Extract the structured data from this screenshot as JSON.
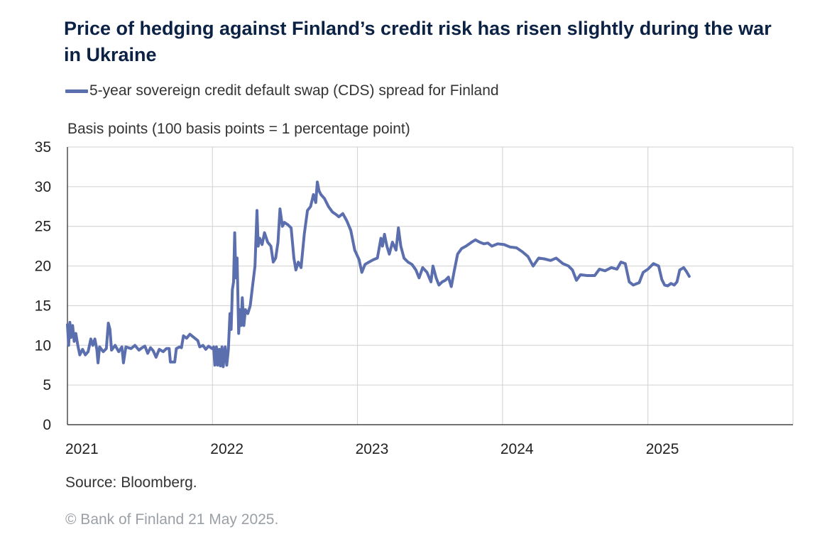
{
  "title": "Price of hedging against Finland’s credit risk has risen slightly during the war in Ukraine",
  "source": "Source: Bloomberg.",
  "copyright": "© Bank of Finland 21 May 2025.",
  "chart_data": {
    "type": "line",
    "ylabel": "Basis points (100 basis points = 1 percentage point)",
    "ylim": [
      0,
      35
    ],
    "yticks": [
      "0",
      "5",
      "10",
      "15",
      "20",
      "25",
      "30",
      "35"
    ],
    "xlim": [
      "2021-01-01",
      "2026-01-01"
    ],
    "xticks": [
      "2021",
      "2022",
      "2023",
      "2024",
      "2025"
    ],
    "grid": true,
    "legend_position": "top-left",
    "colors": {
      "series": "#5b6eae",
      "grid": "#d0d0d0",
      "axis": "#222222"
    },
    "series": [
      {
        "name": "5-year sovereign credit default swap (CDS) spread for Finland",
        "points": [
          [
            "2021-01-01",
            12.6
          ],
          [
            "2021-01-04",
            10.0
          ],
          [
            "2021-01-07",
            12.9
          ],
          [
            "2021-01-10",
            11.0
          ],
          [
            "2021-01-14",
            12.5
          ],
          [
            "2021-01-18",
            10.5
          ],
          [
            "2021-01-22",
            11.5
          ],
          [
            "2021-01-27",
            10.0
          ],
          [
            "2021-02-01",
            8.8
          ],
          [
            "2021-02-08",
            9.5
          ],
          [
            "2021-02-15",
            8.8
          ],
          [
            "2021-02-22",
            9.2
          ],
          [
            "2021-03-01",
            10.8
          ],
          [
            "2021-03-06",
            10.0
          ],
          [
            "2021-03-11",
            10.8
          ],
          [
            "2021-03-16",
            9.5
          ],
          [
            "2021-03-19",
            7.8
          ],
          [
            "2021-03-23",
            9.8
          ],
          [
            "2021-04-01",
            9.2
          ],
          [
            "2021-04-09",
            9.6
          ],
          [
            "2021-04-14",
            12.8
          ],
          [
            "2021-04-18",
            12.0
          ],
          [
            "2021-04-22",
            9.4
          ],
          [
            "2021-05-01",
            10.0
          ],
          [
            "2021-05-10",
            9.2
          ],
          [
            "2021-05-18",
            9.8
          ],
          [
            "2021-05-22",
            7.8
          ],
          [
            "2021-05-28",
            9.8
          ],
          [
            "2021-06-10",
            9.6
          ],
          [
            "2021-06-20",
            10.0
          ],
          [
            "2021-06-30",
            9.4
          ],
          [
            "2021-07-08",
            9.7
          ],
          [
            "2021-07-15",
            9.9
          ],
          [
            "2021-07-22",
            9.0
          ],
          [
            "2021-07-29",
            9.7
          ],
          [
            "2021-08-05",
            9.3
          ],
          [
            "2021-08-12",
            8.5
          ],
          [
            "2021-08-20",
            9.5
          ],
          [
            "2021-08-30",
            9.2
          ],
          [
            "2021-09-07",
            9.6
          ],
          [
            "2021-09-14",
            9.6
          ],
          [
            "2021-09-17",
            7.9
          ],
          [
            "2021-09-28",
            7.9
          ],
          [
            "2021-10-02",
            9.6
          ],
          [
            "2021-10-10",
            9.8
          ],
          [
            "2021-10-15",
            9.7
          ],
          [
            "2021-10-20",
            11.2
          ],
          [
            "2021-10-28",
            10.9
          ],
          [
            "2021-11-05",
            11.4
          ],
          [
            "2021-11-15",
            11.0
          ],
          [
            "2021-11-25",
            10.6
          ],
          [
            "2021-11-30",
            9.8
          ],
          [
            "2021-12-08",
            10.0
          ],
          [
            "2021-12-15",
            9.5
          ],
          [
            "2021-12-22",
            9.9
          ],
          [
            "2021-12-31",
            9.6
          ],
          [
            "2022-01-04",
            9.8
          ],
          [
            "2022-01-07",
            7.5
          ],
          [
            "2022-01-11",
            9.8
          ],
          [
            "2022-01-14",
            7.5
          ],
          [
            "2022-01-18",
            9.5
          ],
          [
            "2022-01-21",
            7.4
          ],
          [
            "2022-01-25",
            9.8
          ],
          [
            "2022-01-28",
            7.3
          ],
          [
            "2022-02-02",
            9.8
          ],
          [
            "2022-02-06",
            7.5
          ],
          [
            "2022-02-10",
            9.5
          ],
          [
            "2022-02-14",
            14.0
          ],
          [
            "2022-02-17",
            12.0
          ],
          [
            "2022-02-20",
            17.0
          ],
          [
            "2022-02-23",
            18.0
          ],
          [
            "2022-02-26",
            24.2
          ],
          [
            "2022-03-01",
            18.5
          ],
          [
            "2022-03-04",
            21.0
          ],
          [
            "2022-03-08",
            11.5
          ],
          [
            "2022-03-11",
            14.5
          ],
          [
            "2022-03-14",
            12.5
          ],
          [
            "2022-03-17",
            16.0
          ],
          [
            "2022-03-21",
            12.5
          ],
          [
            "2022-03-25",
            14.5
          ],
          [
            "2022-03-31",
            14.0
          ],
          [
            "2022-04-06",
            15.0
          ],
          [
            "2022-04-12",
            17.5
          ],
          [
            "2022-04-18",
            20.0
          ],
          [
            "2022-04-23",
            27.0
          ],
          [
            "2022-04-26",
            22.5
          ],
          [
            "2022-04-30",
            23.5
          ],
          [
            "2022-05-06",
            22.7
          ],
          [
            "2022-05-12",
            24.2
          ],
          [
            "2022-05-20",
            23.0
          ],
          [
            "2022-05-28",
            22.5
          ],
          [
            "2022-06-03",
            20.5
          ],
          [
            "2022-06-09",
            21.0
          ],
          [
            "2022-06-15",
            23.0
          ],
          [
            "2022-06-20",
            27.2
          ],
          [
            "2022-06-26",
            25.0
          ],
          [
            "2022-07-01",
            25.5
          ],
          [
            "2022-07-10",
            25.2
          ],
          [
            "2022-07-18",
            24.8
          ],
          [
            "2022-07-25",
            21.0
          ],
          [
            "2022-07-30",
            19.5
          ],
          [
            "2022-08-05",
            20.5
          ],
          [
            "2022-08-12",
            19.8
          ],
          [
            "2022-08-20",
            24.0
          ],
          [
            "2022-08-28",
            27.0
          ],
          [
            "2022-09-05",
            27.5
          ],
          [
            "2022-09-12",
            29.0
          ],
          [
            "2022-09-18",
            28.0
          ],
          [
            "2022-09-22",
            30.6
          ],
          [
            "2022-09-26",
            29.5
          ],
          [
            "2022-10-01",
            29.0
          ],
          [
            "2022-10-10",
            28.5
          ],
          [
            "2022-10-20",
            27.5
          ],
          [
            "2022-10-30",
            26.8
          ],
          [
            "2022-11-08",
            26.5
          ],
          [
            "2022-11-15",
            26.2
          ],
          [
            "2022-11-25",
            26.6
          ],
          [
            "2022-12-05",
            25.7
          ],
          [
            "2022-12-15",
            24.5
          ],
          [
            "2022-12-25",
            22.0
          ],
          [
            "2023-01-05",
            20.8
          ],
          [
            "2023-01-12",
            19.2
          ],
          [
            "2023-01-20",
            20.2
          ],
          [
            "2023-01-30",
            20.5
          ],
          [
            "2023-02-10",
            20.8
          ],
          [
            "2023-02-20",
            21.0
          ],
          [
            "2023-03-01",
            23.5
          ],
          [
            "2023-03-05",
            22.5
          ],
          [
            "2023-03-10",
            24.0
          ],
          [
            "2023-03-16",
            22.5
          ],
          [
            "2023-03-22",
            21.5
          ],
          [
            "2023-03-30",
            23.0
          ],
          [
            "2023-04-08",
            22.0
          ],
          [
            "2023-04-14",
            24.8
          ],
          [
            "2023-04-20",
            22.5
          ],
          [
            "2023-04-28",
            21.0
          ],
          [
            "2023-05-08",
            20.5
          ],
          [
            "2023-05-18",
            20.2
          ],
          [
            "2023-05-28",
            19.5
          ],
          [
            "2023-06-05",
            18.5
          ],
          [
            "2023-06-14",
            19.8
          ],
          [
            "2023-06-25",
            19.2
          ],
          [
            "2023-07-05",
            18.0
          ],
          [
            "2023-07-10",
            20.0
          ],
          [
            "2023-07-18",
            18.5
          ],
          [
            "2023-07-25",
            17.6
          ],
          [
            "2023-08-02",
            18.0
          ],
          [
            "2023-08-10",
            18.2
          ],
          [
            "2023-08-18",
            18.6
          ],
          [
            "2023-08-25",
            17.4
          ],
          [
            "2023-09-02",
            19.5
          ],
          [
            "2023-09-10",
            21.5
          ],
          [
            "2023-09-20",
            22.2
          ],
          [
            "2023-10-01",
            22.5
          ],
          [
            "2023-10-15",
            23.0
          ],
          [
            "2023-10-25",
            23.3
          ],
          [
            "2023-11-05",
            23.0
          ],
          [
            "2023-11-15",
            22.8
          ],
          [
            "2023-11-25",
            22.9
          ],
          [
            "2023-12-05",
            22.5
          ],
          [
            "2023-12-20",
            22.8
          ],
          [
            "2024-01-05",
            22.7
          ],
          [
            "2024-01-20",
            22.4
          ],
          [
            "2024-02-05",
            22.3
          ],
          [
            "2024-02-20",
            21.8
          ],
          [
            "2024-03-05",
            21.2
          ],
          [
            "2024-03-18",
            20.0
          ],
          [
            "2024-04-01",
            21.0
          ],
          [
            "2024-04-15",
            20.9
          ],
          [
            "2024-05-01",
            20.7
          ],
          [
            "2024-05-15",
            21.0
          ],
          [
            "2024-06-01",
            20.3
          ],
          [
            "2024-06-15",
            20.0
          ],
          [
            "2024-06-25",
            19.5
          ],
          [
            "2024-07-05",
            18.2
          ],
          [
            "2024-07-15",
            18.9
          ],
          [
            "2024-08-01",
            18.8
          ],
          [
            "2024-08-20",
            18.8
          ],
          [
            "2024-09-01",
            19.6
          ],
          [
            "2024-09-15",
            19.4
          ],
          [
            "2024-10-01",
            19.8
          ],
          [
            "2024-10-15",
            19.6
          ],
          [
            "2024-10-25",
            20.5
          ],
          [
            "2024-11-05",
            20.3
          ],
          [
            "2024-11-15",
            18.0
          ],
          [
            "2024-11-25",
            17.6
          ],
          [
            "2024-12-10",
            17.9
          ],
          [
            "2024-12-20",
            19.2
          ],
          [
            "2025-01-01",
            19.6
          ],
          [
            "2025-01-15",
            20.3
          ],
          [
            "2025-01-28",
            20.0
          ],
          [
            "2025-02-05",
            18.3
          ],
          [
            "2025-02-12",
            17.6
          ],
          [
            "2025-02-20",
            17.5
          ],
          [
            "2025-02-28",
            17.8
          ],
          [
            "2025-03-08",
            17.6
          ],
          [
            "2025-03-15",
            18.0
          ],
          [
            "2025-03-22",
            19.5
          ],
          [
            "2025-04-01",
            19.8
          ],
          [
            "2025-04-08",
            19.3
          ],
          [
            "2025-04-15",
            18.7
          ]
        ]
      }
    ]
  }
}
